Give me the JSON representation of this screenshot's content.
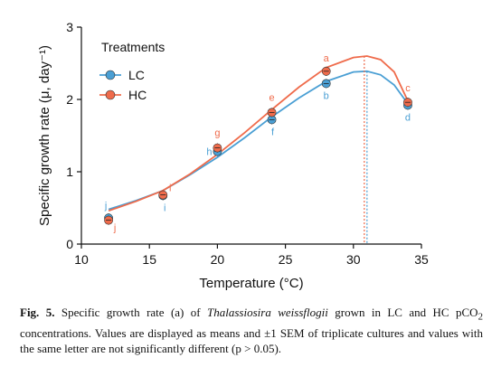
{
  "chart_data": {
    "type": "line",
    "xlabel": "Temperature (°C)",
    "ylabel": "Specific growth rate (μ, day⁻¹)",
    "xlim": [
      10,
      35
    ],
    "ylim": [
      0,
      3
    ],
    "xticks": [
      10,
      15,
      20,
      25,
      30,
      35
    ],
    "yticks": [
      0,
      1,
      2,
      3
    ],
    "grid": false,
    "legend": {
      "title": "Treatments",
      "placement": "top-left"
    },
    "series": [
      {
        "name": "LC",
        "color": "#4a9fd4",
        "points": [
          {
            "x": 12,
            "y": 0.36,
            "letter": "j"
          },
          {
            "x": 16,
            "y": 0.67,
            "letter": "i"
          },
          {
            "x": 20,
            "y": 1.28,
            "letter": "h"
          },
          {
            "x": 24,
            "y": 1.72,
            "letter": "f"
          },
          {
            "x": 28,
            "y": 2.22,
            "letter": "b"
          },
          {
            "x": 34,
            "y": 1.92,
            "letter": "d"
          }
        ],
        "fit": [
          [
            12,
            0.48
          ],
          [
            14,
            0.6
          ],
          [
            16,
            0.74
          ],
          [
            18,
            0.96
          ],
          [
            20,
            1.2
          ],
          [
            22,
            1.47
          ],
          [
            24,
            1.76
          ],
          [
            26,
            2.02
          ],
          [
            28,
            2.25
          ],
          [
            30,
            2.38
          ],
          [
            31,
            2.39
          ],
          [
            32,
            2.34
          ],
          [
            33,
            2.2
          ],
          [
            34,
            1.94
          ]
        ],
        "optimum_x": 31.0
      },
      {
        "name": "HC",
        "color": "#ef6b4b",
        "points": [
          {
            "x": 12,
            "y": 0.33,
            "letter": "j"
          },
          {
            "x": 16,
            "y": 0.68,
            "letter": "i"
          },
          {
            "x": 20,
            "y": 1.33,
            "letter": "g"
          },
          {
            "x": 24,
            "y": 1.82,
            "letter": "e"
          },
          {
            "x": 28,
            "y": 2.39,
            "letter": "a"
          },
          {
            "x": 34,
            "y": 1.96,
            "letter": "c"
          }
        ],
        "fit": [
          [
            12,
            0.46
          ],
          [
            14,
            0.59
          ],
          [
            16,
            0.74
          ],
          [
            18,
            0.97
          ],
          [
            20,
            1.24
          ],
          [
            22,
            1.54
          ],
          [
            24,
            1.86
          ],
          [
            26,
            2.17
          ],
          [
            28,
            2.44
          ],
          [
            30,
            2.58
          ],
          [
            31,
            2.6
          ],
          [
            32,
            2.55
          ],
          [
            33,
            2.38
          ],
          [
            34,
            1.98
          ]
        ],
        "optimum_x": 30.8
      }
    ]
  },
  "caption": {
    "label": "Fig. 5.",
    "t1": " Specific growth rate (a) of ",
    "species": "Thalassiosira weissflogii",
    "t2": " grown in LC and HC pCO",
    "sub": "2",
    "t3": " concentrations. Values are displayed as means and ±1 SEM of triplicate cultures and values with the same letter are not significantly different (p > 0.05)."
  }
}
